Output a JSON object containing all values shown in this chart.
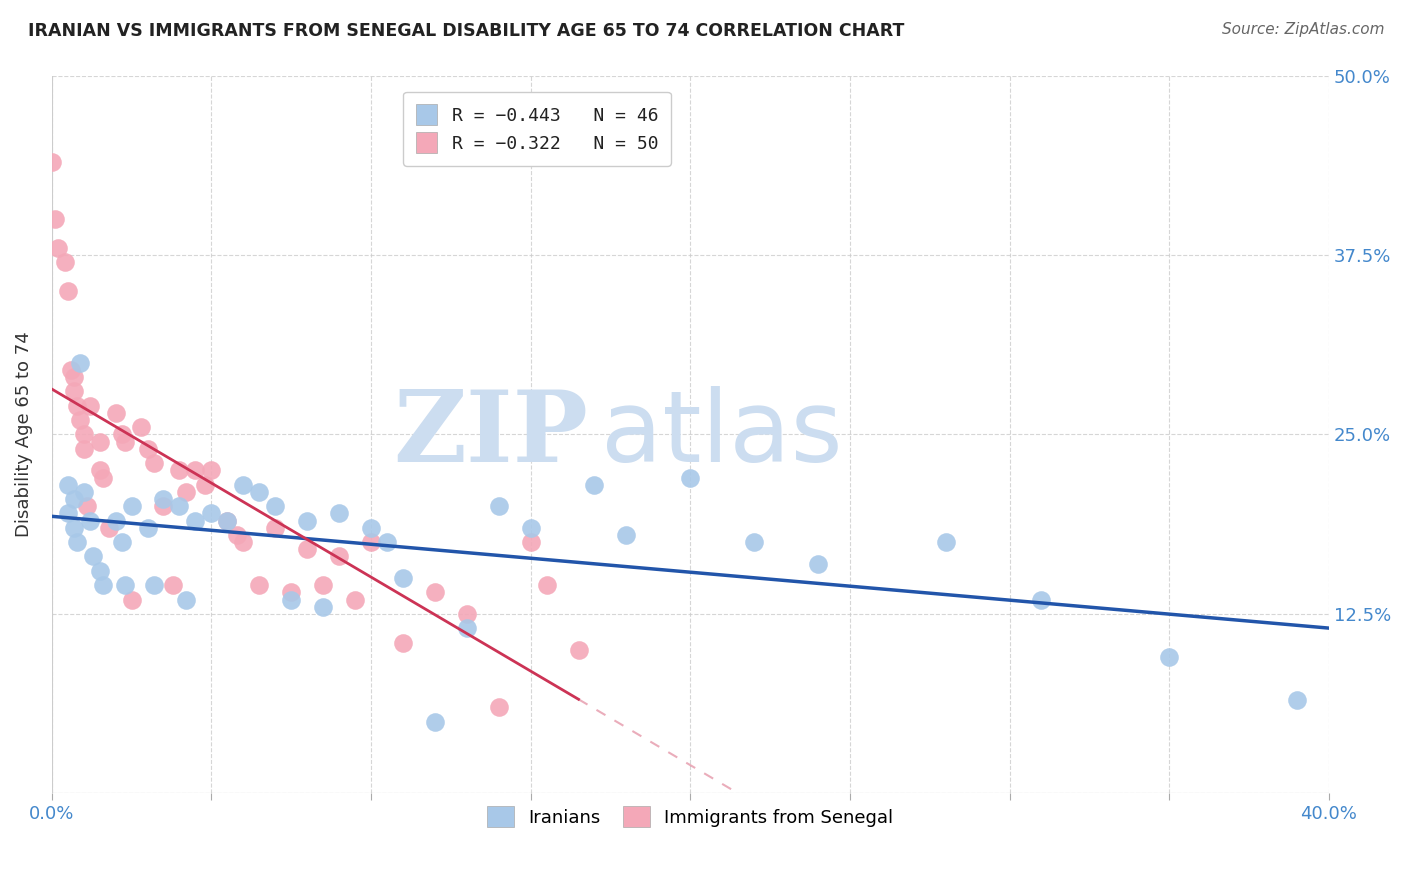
{
  "title": "IRANIAN VS IMMIGRANTS FROM SENEGAL DISABILITY AGE 65 TO 74 CORRELATION CHART",
  "source": "Source: ZipAtlas.com",
  "ylabel": "Disability Age 65 to 74",
  "xlim": [
    0.0,
    0.4
  ],
  "ylim": [
    0.0,
    0.5
  ],
  "xticks": [
    0.0,
    0.05,
    0.1,
    0.15,
    0.2,
    0.25,
    0.3,
    0.35,
    0.4
  ],
  "yticks": [
    0.0,
    0.125,
    0.25,
    0.375,
    0.5
  ],
  "legend_blue_r": "R = −0.443",
  "legend_blue_n": "N = 46",
  "legend_pink_r": "R = −0.322",
  "legend_pink_n": "N = 50",
  "legend_label_blue": "Iranians",
  "legend_label_pink": "Immigrants from Senegal",
  "blue_color": "#A8C8E8",
  "pink_color": "#F4A8B8",
  "trendline_blue_color": "#2255AA",
  "trendline_pink_color": "#CC3355",
  "watermark_zip": "ZIP",
  "watermark_atlas": "atlas",
  "background_color": "#ffffff",
  "iranians_x": [
    0.005,
    0.005,
    0.007,
    0.007,
    0.008,
    0.009,
    0.01,
    0.012,
    0.013,
    0.015,
    0.016,
    0.02,
    0.022,
    0.023,
    0.025,
    0.03,
    0.032,
    0.035,
    0.04,
    0.042,
    0.045,
    0.05,
    0.055,
    0.06,
    0.065,
    0.07,
    0.075,
    0.08,
    0.085,
    0.09,
    0.1,
    0.105,
    0.11,
    0.12,
    0.13,
    0.14,
    0.15,
    0.17,
    0.18,
    0.2,
    0.22,
    0.24,
    0.28,
    0.31,
    0.35,
    0.39
  ],
  "iranians_y": [
    0.215,
    0.195,
    0.205,
    0.185,
    0.175,
    0.3,
    0.21,
    0.19,
    0.165,
    0.155,
    0.145,
    0.19,
    0.175,
    0.145,
    0.2,
    0.185,
    0.145,
    0.205,
    0.2,
    0.135,
    0.19,
    0.195,
    0.19,
    0.215,
    0.21,
    0.2,
    0.135,
    0.19,
    0.13,
    0.195,
    0.185,
    0.175,
    0.15,
    0.05,
    0.115,
    0.2,
    0.185,
    0.215,
    0.18,
    0.22,
    0.175,
    0.16,
    0.175,
    0.135,
    0.095,
    0.065
  ],
  "senegal_x": [
    0.0,
    0.001,
    0.002,
    0.004,
    0.005,
    0.006,
    0.007,
    0.007,
    0.008,
    0.009,
    0.01,
    0.01,
    0.011,
    0.012,
    0.015,
    0.015,
    0.016,
    0.018,
    0.02,
    0.022,
    0.023,
    0.025,
    0.028,
    0.03,
    0.032,
    0.035,
    0.038,
    0.04,
    0.042,
    0.045,
    0.048,
    0.05,
    0.055,
    0.058,
    0.06,
    0.065,
    0.07,
    0.075,
    0.08,
    0.085,
    0.09,
    0.095,
    0.1,
    0.11,
    0.12,
    0.13,
    0.14,
    0.15,
    0.155,
    0.165
  ],
  "senegal_y": [
    0.44,
    0.4,
    0.38,
    0.37,
    0.35,
    0.295,
    0.29,
    0.28,
    0.27,
    0.26,
    0.25,
    0.24,
    0.2,
    0.27,
    0.245,
    0.225,
    0.22,
    0.185,
    0.265,
    0.25,
    0.245,
    0.135,
    0.255,
    0.24,
    0.23,
    0.2,
    0.145,
    0.225,
    0.21,
    0.225,
    0.215,
    0.225,
    0.19,
    0.18,
    0.175,
    0.145,
    0.185,
    0.14,
    0.17,
    0.145,
    0.165,
    0.135,
    0.175,
    0.105,
    0.14,
    0.125,
    0.06,
    0.175,
    0.145,
    0.1
  ]
}
